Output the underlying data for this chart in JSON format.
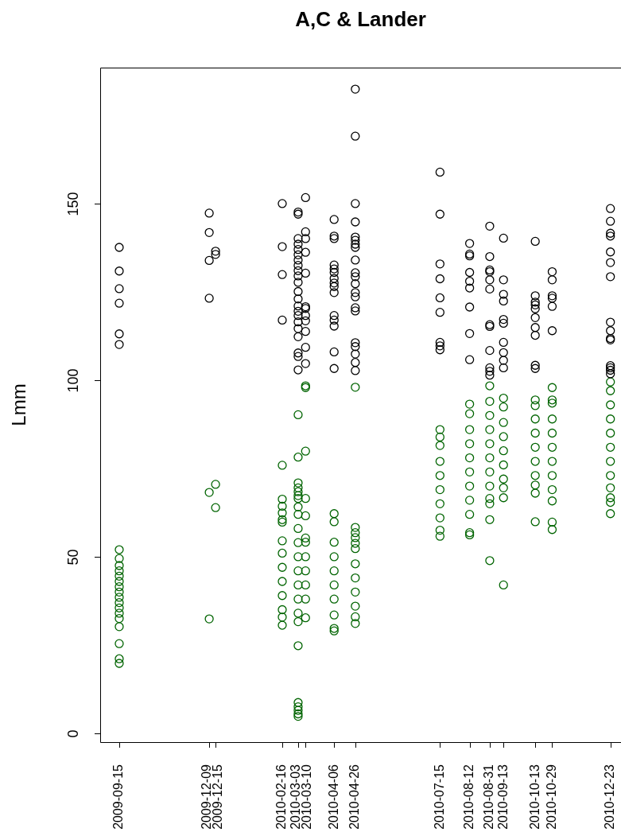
{
  "chart_data": {
    "type": "scatter",
    "title": "A,C & Lander",
    "ylabel": "Lmm",
    "marker": "circle",
    "xlim": [
      "2009-08-28",
      "2011-01-02"
    ],
    "ylim": [
      -2.5,
      188.5
    ],
    "xticks": [
      "2009-09-15",
      "2009-12-09",
      "2009-12-15",
      "2010-02-16",
      "2010-03-03",
      "2010-03-10",
      "2010-04-06",
      "2010-04-26",
      "2010-07-15",
      "2010-08-12",
      "2010-08-31",
      "2010-09-13",
      "2010-10-13",
      "2010-10-29",
      "2010-12-23"
    ],
    "yticks": [
      0,
      50,
      100,
      150
    ],
    "series": [
      {
        "color": "#000000",
        "x": [
          "2009-09-15",
          "2009-09-15",
          "2009-09-15",
          "2009-09-15",
          "2009-09-15",
          "2009-09-15",
          "2009-12-09",
          "2009-12-09",
          "2009-12-09",
          "2009-12-09",
          "2009-12-15",
          "2009-12-15",
          "2010-02-16",
          "2010-02-16",
          "2010-02-16",
          "2010-02-16",
          "2010-03-03",
          "2010-03-03",
          "2010-03-03",
          "2010-03-03",
          "2010-03-03",
          "2010-03-03",
          "2010-03-03",
          "2010-03-03",
          "2010-03-03",
          "2010-03-03",
          "2010-03-03",
          "2010-03-03",
          "2010-03-03",
          "2010-03-03",
          "2010-03-03",
          "2010-03-03",
          "2010-03-03",
          "2010-03-03",
          "2010-03-03",
          "2010-03-03",
          "2010-03-03",
          "2010-03-03",
          "2010-03-10",
          "2010-03-10",
          "2010-03-10",
          "2010-03-10",
          "2010-03-10",
          "2010-03-10",
          "2010-03-10",
          "2010-03-10",
          "2010-03-10",
          "2010-03-10",
          "2010-03-10",
          "2010-03-10",
          "2010-04-06",
          "2010-04-06",
          "2010-04-06",
          "2010-04-06",
          "2010-04-06",
          "2010-04-06",
          "2010-04-06",
          "2010-04-06",
          "2010-04-06",
          "2010-04-06",
          "2010-04-06",
          "2010-04-06",
          "2010-04-06",
          "2010-04-06",
          "2010-04-06",
          "2010-04-26",
          "2010-04-26",
          "2010-04-26",
          "2010-04-26",
          "2010-04-26",
          "2010-04-26",
          "2010-04-26",
          "2010-04-26",
          "2010-04-26",
          "2010-04-26",
          "2010-04-26",
          "2010-04-26",
          "2010-04-26",
          "2010-04-26",
          "2010-04-26",
          "2010-04-26",
          "2010-04-26",
          "2010-04-26",
          "2010-04-26",
          "2010-04-26",
          "2010-04-26",
          "2010-07-15",
          "2010-07-15",
          "2010-07-15",
          "2010-07-15",
          "2010-07-15",
          "2010-07-15",
          "2010-07-15",
          "2010-07-15",
          "2010-07-15",
          "2010-08-12",
          "2010-08-12",
          "2010-08-12",
          "2010-08-12",
          "2010-08-12",
          "2010-08-12",
          "2010-08-12",
          "2010-08-12",
          "2010-08-12",
          "2010-08-31",
          "2010-08-31",
          "2010-08-31",
          "2010-08-31",
          "2010-08-31",
          "2010-08-31",
          "2010-08-31",
          "2010-08-31",
          "2010-08-31",
          "2010-08-31",
          "2010-08-31",
          "2010-08-31",
          "2010-09-13",
          "2010-09-13",
          "2010-09-13",
          "2010-09-13",
          "2010-09-13",
          "2010-09-13",
          "2010-09-13",
          "2010-09-13",
          "2010-09-13",
          "2010-09-13",
          "2010-10-13",
          "2010-10-13",
          "2010-10-13",
          "2010-10-13",
          "2010-10-13",
          "2010-10-13",
          "2010-10-13",
          "2010-10-13",
          "2010-10-13",
          "2010-10-13",
          "2010-10-29",
          "2010-10-29",
          "2010-10-29",
          "2010-10-29",
          "2010-10-29",
          "2010-10-29",
          "2010-12-23",
          "2010-12-23",
          "2010-12-23",
          "2010-12-23",
          "2010-12-23",
          "2010-12-23",
          "2010-12-23",
          "2010-12-23",
          "2010-12-23",
          "2010-12-23",
          "2010-12-23",
          "2010-12-23",
          "2010-12-23",
          "2010-12-23",
          "2010-12-23"
        ],
        "values": [
          137.6,
          130.9,
          125.9,
          121.8,
          113.1,
          110.1,
          147.3,
          141.8,
          133.9,
          123.2,
          136.5,
          135.6,
          150.0,
          137.8,
          129.9,
          117.0,
          147.6,
          147.0,
          140.1,
          138.5,
          137,
          135.5,
          134,
          132.5,
          131,
          129.5,
          127.7,
          125.1,
          123,
          121,
          119.5,
          118.3,
          116.5,
          114.6,
          112.3,
          107.7,
          106.7,
          102.9,
          151.7,
          142.0,
          140.1,
          136.2,
          130.3,
          120.8,
          120.3,
          118.3,
          116.8,
          113.8,
          109.3,
          104.7,
          145.5,
          140.8,
          140.1,
          132.6,
          131.5,
          130.5,
          128.8,
          127.5,
          126.5,
          124.8,
          118.3,
          117,
          115.3,
          108.0,
          103.3,
          182.4,
          169.1,
          150.0,
          144.8,
          140.5,
          139.6,
          138.5,
          137.6,
          134.0,
          130.4,
          129.3,
          127.3,
          124.8,
          123.6,
          120.5,
          119.6,
          110.6,
          109.5,
          107.4,
          105.0,
          102.7,
          158.9,
          147.0,
          132.9,
          128.7,
          123.3,
          119.2,
          110.7,
          109.7,
          108.6,
          138.7,
          135.7,
          135.2,
          130.5,
          128.0,
          126.1,
          120.7,
          113.2,
          105.8,
          143.6,
          135.0,
          131.2,
          130.7,
          128.4,
          125.8,
          115.7,
          115.2,
          108.4,
          103.5,
          102.5,
          101.4,
          140.2,
          128.4,
          124.3,
          122.4,
          117.2,
          116.1,
          110.7,
          107.8,
          105.6,
          103.5,
          139.3,
          123.9,
          122.1,
          121.3,
          120.2,
          117.7,
          114.9,
          112.7,
          104.2,
          103.3,
          130.7,
          128.4,
          123.9,
          123.2,
          120.9,
          114.0,
          148.6,
          145.0,
          141.6,
          140.8,
          136.3,
          133.3,
          129.3,
          116.4,
          114.0,
          111.8,
          111.4,
          104.1,
          103.5,
          102.8,
          101.8
        ]
      },
      {
        "color": "#006400",
        "x": [
          "2009-09-15",
          "2009-09-15",
          "2009-09-15",
          "2009-09-15",
          "2009-09-15",
          "2009-09-15",
          "2009-09-15",
          "2009-09-15",
          "2009-09-15",
          "2009-09-15",
          "2009-09-15",
          "2009-09-15",
          "2009-09-15",
          "2009-09-15",
          "2009-09-15",
          "2009-09-15",
          "2009-09-15",
          "2009-12-09",
          "2009-12-09",
          "2009-12-15",
          "2009-12-15",
          "2010-02-16",
          "2010-02-16",
          "2010-02-16",
          "2010-02-16",
          "2010-02-16",
          "2010-02-16",
          "2010-02-16",
          "2010-02-16",
          "2010-02-16",
          "2010-02-16",
          "2010-02-16",
          "2010-02-16",
          "2010-02-16",
          "2010-02-16",
          "2010-03-03",
          "2010-03-03",
          "2010-03-03",
          "2010-03-03",
          "2010-03-03",
          "2010-03-03",
          "2010-03-03",
          "2010-03-03",
          "2010-03-03",
          "2010-03-03",
          "2010-03-03",
          "2010-03-03",
          "2010-03-03",
          "2010-03-03",
          "2010-03-03",
          "2010-03-03",
          "2010-03-03",
          "2010-03-03",
          "2010-03-03",
          "2010-03-03",
          "2010-03-03",
          "2010-03-03",
          "2010-03-03",
          "2010-03-10",
          "2010-03-10",
          "2010-03-10",
          "2010-03-10",
          "2010-03-10",
          "2010-03-10",
          "2010-03-10",
          "2010-03-10",
          "2010-03-10",
          "2010-03-10",
          "2010-03-10",
          "2010-03-10",
          "2010-04-06",
          "2010-04-06",
          "2010-04-06",
          "2010-04-06",
          "2010-04-06",
          "2010-04-06",
          "2010-04-06",
          "2010-04-06",
          "2010-04-06",
          "2010-04-06",
          "2010-04-26",
          "2010-04-26",
          "2010-04-26",
          "2010-04-26",
          "2010-04-26",
          "2010-04-26",
          "2010-04-26",
          "2010-04-26",
          "2010-04-26",
          "2010-04-26",
          "2010-04-26",
          "2010-04-26",
          "2010-07-15",
          "2010-07-15",
          "2010-07-15",
          "2010-07-15",
          "2010-07-15",
          "2010-07-15",
          "2010-07-15",
          "2010-07-15",
          "2010-07-15",
          "2010-07-15",
          "2010-08-12",
          "2010-08-12",
          "2010-08-12",
          "2010-08-12",
          "2010-08-12",
          "2010-08-12",
          "2010-08-12",
          "2010-08-12",
          "2010-08-12",
          "2010-08-12",
          "2010-08-12",
          "2010-08-31",
          "2010-08-31",
          "2010-08-31",
          "2010-08-31",
          "2010-08-31",
          "2010-08-31",
          "2010-08-31",
          "2010-08-31",
          "2010-08-31",
          "2010-08-31",
          "2010-08-31",
          "2010-08-31",
          "2010-09-13",
          "2010-09-13",
          "2010-09-13",
          "2010-09-13",
          "2010-09-13",
          "2010-09-13",
          "2010-09-13",
          "2010-09-13",
          "2010-09-13",
          "2010-09-13",
          "2010-10-13",
          "2010-10-13",
          "2010-10-13",
          "2010-10-13",
          "2010-10-13",
          "2010-10-13",
          "2010-10-13",
          "2010-10-13",
          "2010-10-13",
          "2010-10-13",
          "2010-10-29",
          "2010-10-29",
          "2010-10-29",
          "2010-10-29",
          "2010-10-29",
          "2010-10-29",
          "2010-10-29",
          "2010-10-29",
          "2010-10-29",
          "2010-10-29",
          "2010-10-29",
          "2010-10-29",
          "2010-12-23",
          "2010-12-23",
          "2010-12-23",
          "2010-12-23",
          "2010-12-23",
          "2010-12-23",
          "2010-12-23",
          "2010-12-23",
          "2010-12-23",
          "2010-12-23",
          "2010-12-23",
          "2010-12-23"
        ],
        "values": [
          52.0,
          49.5,
          47.5,
          46,
          44.5,
          43,
          41.5,
          40,
          38.5,
          37,
          35.5,
          34,
          32.5,
          30.2,
          25.4,
          21.1,
          19.8,
          68.2,
          32.4,
          70.5,
          63.9,
          75.9,
          66.3,
          64.3,
          62.4,
          60.5,
          59.8,
          54.5,
          51,
          47,
          43,
          39,
          35.0,
          32.9,
          30.6,
          90.2,
          78.2,
          70.9,
          69.5,
          68.4,
          67.3,
          66.5,
          64.1,
          62.0,
          58,
          54,
          50,
          46,
          42,
          38,
          34,
          31.6,
          24.8,
          8.7,
          7.5,
          6.5,
          5.5,
          4.8,
          98.4,
          97.9,
          79.9,
          66.5,
          61.6,
          55.3,
          54.1,
          50,
          46,
          42,
          38,
          32.7,
          62.2,
          59.9,
          54.1,
          50,
          46,
          42,
          38,
          33.5,
          29.7,
          29.0,
          98.0,
          58.3,
          56.8,
          55.4,
          53.8,
          52.3,
          48,
          44,
          40,
          36,
          33,
          31.1,
          86.0,
          83.9,
          81.5,
          77,
          73,
          69,
          65,
          61,
          57.5,
          55.8,
          93.2,
          90.5,
          86,
          82,
          78,
          74,
          70,
          66,
          62.0,
          56.8,
          56.2,
          98.4,
          94,
          90,
          86,
          82,
          78,
          74,
          70,
          66.5,
          65.0,
          60.5,
          48.9,
          94.9,
          92.4,
          88,
          84,
          80,
          76,
          72,
          69.5,
          66.7,
          42.0,
          94.4,
          92.8,
          89,
          85,
          81,
          77,
          73,
          70.3,
          68.0,
          59.9,
          97.9,
          94.4,
          93.5,
          89.0,
          85,
          81,
          77,
          73,
          69,
          65.8,
          59.8,
          57.7,
          99.5,
          97,
          93,
          89,
          85,
          81,
          77,
          73,
          69.5,
          66.7,
          65.4,
          62.2
        ]
      }
    ]
  }
}
